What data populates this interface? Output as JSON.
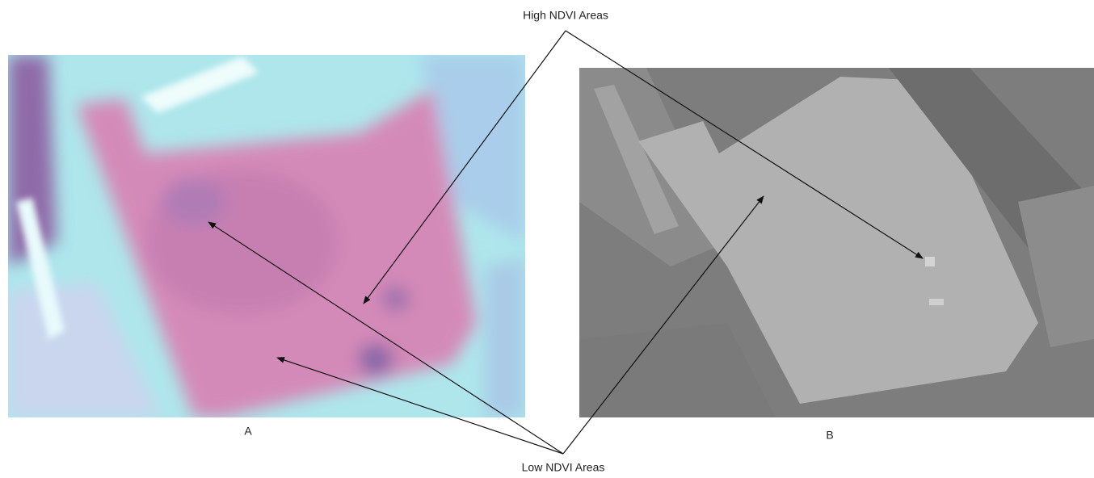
{
  "annotations": {
    "high": "High NDVI Areas",
    "low": "Low NDVI Areas"
  },
  "panels": [
    {
      "label": "A"
    },
    {
      "label": "B"
    }
  ]
}
